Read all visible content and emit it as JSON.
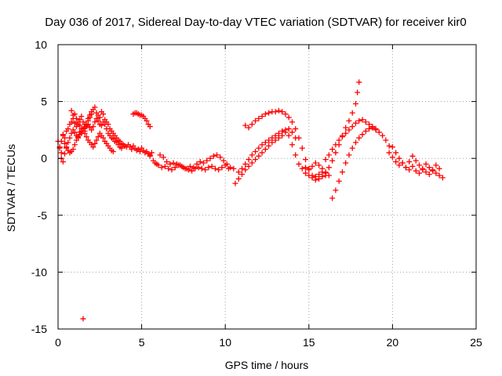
{
  "chart_data": {
    "type": "scatter",
    "title": "Day 036 of 2017, Sidereal Day-to-day VTEC variation (SDTVAR) for receiver kir0",
    "xlabel": "GPS time / hours",
    "ylabel": "SDTVAR / TECUs",
    "xlim": [
      0,
      25
    ],
    "ylim": [
      -15,
      10
    ],
    "xticks": [
      0,
      5,
      10,
      15,
      20,
      25
    ],
    "yticks": [
      -15,
      -10,
      -5,
      0,
      5,
      10
    ],
    "xtick_labels": [
      "0",
      "5",
      "10",
      "15",
      "20",
      "25"
    ],
    "ytick_labels": [
      "-15",
      "-10",
      "-5",
      "0",
      "5",
      "10"
    ],
    "grid": true,
    "marker": "plus",
    "series": [
      {
        "name": "SDTVAR",
        "color": "#ff0000",
        "x": [
          0.0,
          0.1,
          0.2,
          0.3,
          0.4,
          0.5,
          0.6,
          0.7,
          0.8,
          0.9,
          1.0,
          1.1,
          1.2,
          1.3,
          1.4,
          1.5,
          1.6,
          1.7,
          1.8,
          1.9,
          2.0,
          2.1,
          2.2,
          2.3,
          2.4,
          2.5,
          2.6,
          2.7,
          2.8,
          2.9,
          3.0,
          3.1,
          3.2,
          3.3,
          3.4,
          3.5,
          3.6,
          3.7,
          3.8,
          3.9,
          4.0,
          4.1,
          4.2,
          4.3,
          4.4,
          4.5,
          4.6,
          4.7,
          4.8,
          4.9,
          5.0,
          5.1,
          5.2,
          5.3,
          5.4,
          5.5,
          5.6,
          0.1,
          0.2,
          0.3,
          0.4,
          0.5,
          0.6,
          0.7,
          0.8,
          0.9,
          1.0,
          1.1,
          1.2,
          1.3,
          1.4,
          1.5,
          1.6,
          1.7,
          1.8,
          1.9,
          2.0,
          2.1,
          2.2,
          2.3,
          2.4,
          2.5,
          2.6,
          2.7,
          2.8,
          2.9,
          3.0,
          3.1,
          3.2,
          3.3,
          3.4,
          3.5,
          3.6,
          3.7,
          3.8,
          0.2,
          0.3,
          0.4,
          0.5,
          0.6,
          0.7,
          0.8,
          0.9,
          1.0,
          1.1,
          1.2,
          1.3,
          1.4,
          1.5,
          1.6,
          1.7,
          1.8,
          1.9,
          2.0,
          2.1,
          2.2,
          2.3,
          2.4,
          2.5,
          2.6,
          2.7,
          2.8,
          2.9,
          3.0,
          3.1,
          3.2,
          3.3,
          0.8,
          0.9,
          1.0,
          1.1,
          1.2,
          1.3,
          1.4,
          1.5,
          1.6,
          1.7,
          1.8,
          1.9,
          2.0,
          4.5,
          4.6,
          4.7,
          4.8,
          4.9,
          5.0,
          5.1,
          5.2,
          5.3,
          5.4,
          5.5,
          1.5,
          5.5,
          5.7,
          5.9,
          6.1,
          6.3,
          6.5,
          6.7,
          6.9,
          7.1,
          7.3,
          7.5,
          7.7,
          7.9,
          8.1,
          8.3,
          8.5,
          8.7,
          8.9,
          9.1,
          9.3,
          9.5,
          9.7,
          9.9,
          10.1,
          10.3,
          10.5,
          5.8,
          6.0,
          6.2,
          6.4,
          6.6,
          6.8,
          7.0,
          7.2,
          7.4,
          7.6,
          7.8,
          8.0,
          8.2,
          8.4,
          8.6,
          8.8,
          9.0,
          9.2,
          9.4,
          9.6,
          9.8,
          10.0,
          10.2,
          10.6,
          10.8,
          11.0,
          11.2,
          11.4,
          11.6,
          11.8,
          12.0,
          12.2,
          12.4,
          12.6,
          12.8,
          13.0,
          13.2,
          13.4,
          13.6,
          13.8,
          14.0,
          14.2,
          14.4,
          14.6,
          14.8,
          15.0,
          15.2,
          15.4,
          15.6,
          15.8,
          16.0,
          16.2,
          10.8,
          11.0,
          11.2,
          11.4,
          11.6,
          11.8,
          12.0,
          12.2,
          12.4,
          12.6,
          12.8,
          13.0,
          13.2,
          13.4,
          13.6,
          13.8,
          14.0,
          14.2,
          11.2,
          11.4,
          11.6,
          11.8,
          12.0,
          12.2,
          12.4,
          12.6,
          12.8,
          13.0,
          13.2,
          13.4,
          13.6,
          13.8,
          14.0,
          14.2,
          14.4,
          14.6,
          14.8,
          15.0,
          15.2,
          15.4,
          15.6,
          15.8,
          16.0,
          14.8,
          15.0,
          15.2,
          15.4,
          15.6,
          15.8,
          16.0,
          16.2,
          16.4,
          16.6,
          16.8,
          17.0,
          17.2,
          17.4,
          17.6,
          17.8,
          17.9,
          18.0,
          16.4,
          16.6,
          16.8,
          17.0,
          17.2,
          17.4,
          17.6,
          17.8,
          18.0,
          18.2,
          18.4,
          18.6,
          18.8,
          19.0,
          19.2,
          19.4,
          19.6,
          19.8,
          16.0,
          16.2,
          16.4,
          16.6,
          16.8,
          17.0,
          17.2,
          17.4,
          17.6,
          17.8,
          18.0,
          18.2,
          18.4,
          18.6,
          18.8,
          19.0,
          19.8,
          20.0,
          20.2,
          20.4,
          20.6,
          20.8,
          21.0,
          21.2,
          21.4,
          21.6,
          21.8,
          22.0,
          22.2,
          22.4,
          22.6,
          22.8,
          23.0,
          20.0,
          20.2,
          20.4,
          20.6,
          20.8,
          21.0,
          21.2,
          21.4,
          21.6,
          21.8,
          22.0,
          22.2,
          22.4,
          22.6,
          22.8
        ],
        "y": [
          1.5,
          1.0,
          0.5,
          2.0,
          1.8,
          2.4,
          2.6,
          3.0,
          3.2,
          3.5,
          3.1,
          2.8,
          3.0,
          3.4,
          3.7,
          3.2,
          3.0,
          2.9,
          3.5,
          3.8,
          4.1,
          4.3,
          4.5,
          4.0,
          3.8,
          3.6,
          4.1,
          3.9,
          3.4,
          3.2,
          3.0,
          2.6,
          2.4,
          2.2,
          2.0,
          1.8,
          1.6,
          1.5,
          1.3,
          1.2,
          1.1,
          1.0,
          1.2,
          1.0,
          0.8,
          1.1,
          0.9,
          0.7,
          0.8,
          0.6,
          0.9,
          0.7,
          0.5,
          0.6,
          0.4,
          0.3,
          0.5,
          0.9,
          1.5,
          2.1,
          1.3,
          0.9,
          0.7,
          0.5,
          0.6,
          0.8,
          1.2,
          1.6,
          1.9,
          2.3,
          2.2,
          2.6,
          2.4,
          2.8,
          3.0,
          2.7,
          2.5,
          2.8,
          3.2,
          3.5,
          3.3,
          3.0,
          2.9,
          3.2,
          3.0,
          2.6,
          2.2,
          2.0,
          1.8,
          1.7,
          1.5,
          1.4,
          1.2,
          1.0,
          0.9,
          0.0,
          -0.3,
          0.4,
          1.0,
          1.4,
          1.8,
          2.2,
          2.5,
          2.3,
          2.0,
          1.8,
          2.1,
          2.4,
          2.6,
          2.2,
          1.9,
          1.6,
          1.4,
          1.2,
          1.0,
          1.3,
          1.6,
          1.9,
          2.2,
          2.0,
          1.8,
          1.5,
          1.3,
          1.1,
          0.9,
          0.7,
          0.6,
          4.2,
          3.8,
          3.9,
          3.5,
          3.2,
          2.9,
          2.6,
          2.4,
          2.7,
          3.0,
          3.3,
          3.6,
          3.9,
          3.9,
          4.0,
          4.0,
          3.9,
          3.8,
          3.8,
          3.7,
          3.5,
          3.3,
          3.0,
          2.8,
          -14.1,
          0.2,
          -0.2,
          -0.5,
          0.3,
          0.1,
          -0.3,
          -0.5,
          -0.4,
          -0.5,
          -0.6,
          -0.8,
          -0.9,
          -0.7,
          -0.8,
          -0.5,
          -0.3,
          -0.4,
          -0.2,
          0.0,
          0.2,
          0.3,
          0.1,
          -0.2,
          -0.5,
          -0.8,
          -0.9,
          -0.4,
          -0.6,
          -0.8,
          -0.7,
          -0.9,
          -1.0,
          -0.8,
          -0.6,
          -0.7,
          -0.9,
          -1.0,
          -1.1,
          -0.9,
          -0.8,
          -0.9,
          -1.0,
          -0.8,
          -0.7,
          -0.9,
          -1.0,
          -0.8,
          -0.6,
          -0.9,
          -2.2,
          -1.8,
          -1.4,
          -1.0,
          -0.7,
          -0.4,
          -0.1,
          0.2,
          0.5,
          0.8,
          1.1,
          1.4,
          1.6,
          1.8,
          2.0,
          2.3,
          2.0,
          1.2,
          0.3,
          -0.5,
          -0.9,
          -1.3,
          -1.5,
          -1.7,
          -1.6,
          -1.4,
          -1.2,
          -1.3,
          -1.5,
          -1.2,
          -0.9,
          -0.5,
          -0.1,
          0.3,
          0.6,
          0.9,
          1.2,
          1.4,
          1.6,
          1.8,
          2.0,
          2.2,
          2.4,
          2.5,
          2.6,
          2.3,
          1.8,
          2.9,
          2.7,
          3.0,
          3.3,
          3.5,
          3.7,
          3.9,
          4.0,
          4.1,
          4.1,
          4.2,
          4.1,
          3.9,
          3.6,
          3.2,
          2.6,
          1.8,
          0.9,
          -0.1,
          -0.9,
          -1.5,
          -1.9,
          -1.8,
          -1.6,
          -1.5,
          -0.8,
          -1.0,
          -0.7,
          -0.4,
          -0.6,
          -0.9,
          -1.2,
          -0.8,
          -0.2,
          0.5,
          1.2,
          2.0,
          2.7,
          3.3,
          4.0,
          4.8,
          5.8,
          6.7,
          -3.5,
          -2.8,
          -2.0,
          -1.2,
          -0.4,
          0.3,
          0.9,
          1.4,
          1.8,
          2.1,
          2.4,
          2.6,
          2.7,
          2.5,
          2.3,
          2.0,
          1.6,
          1.1,
          -0.1,
          0.3,
          0.8,
          1.2,
          1.6,
          1.9,
          2.2,
          2.5,
          2.8,
          3.1,
          3.3,
          3.4,
          3.2,
          3.0,
          2.8,
          2.6,
          0.5,
          0.1,
          -0.3,
          -0.6,
          -0.4,
          -0.8,
          -1.0,
          -0.7,
          -1.1,
          -1.3,
          -1.0,
          -1.2,
          -1.4,
          -1.1,
          -1.3,
          -1.5,
          -1.7,
          1.0,
          0.5,
          0.0,
          -0.4,
          -0.8,
          -0.3,
          0.2,
          -0.2,
          -0.6,
          -0.9,
          -0.5,
          -0.8,
          -1.0,
          -0.6,
          -0.9
        ]
      }
    ]
  }
}
